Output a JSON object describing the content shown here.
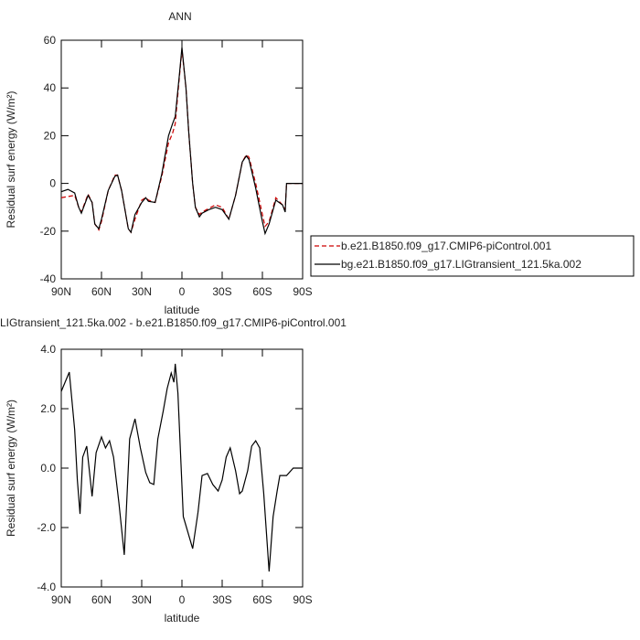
{
  "chart_data": [
    {
      "type": "line",
      "title": "ANN",
      "x_label": "latitude",
      "y_label": "Residual surf energy (W/m²)",
      "xlim": [
        90,
        -90
      ],
      "ylim": [
        -40,
        60
      ],
      "xticks": [
        {
          "value": 90,
          "label": "90N"
        },
        {
          "value": 60,
          "label": "60N"
        },
        {
          "value": 30,
          "label": "30N"
        },
        0,
        {
          "value": -30,
          "label": "30S"
        },
        {
          "value": -60,
          "label": "60S"
        },
        {
          "value": -90,
          "label": "90S"
        }
      ],
      "yticks": [
        -40,
        -20,
        0,
        20,
        40,
        60
      ],
      "legend": "outside-right",
      "x": [
        90,
        85,
        80,
        77,
        75,
        70,
        67,
        65,
        62,
        60,
        55,
        50,
        48,
        45,
        40,
        38,
        35,
        30,
        27,
        25,
        20,
        15,
        10,
        7,
        5,
        2,
        0,
        -3,
        -5,
        -8,
        -10,
        -13,
        -15,
        -20,
        -25,
        -30,
        -35,
        -40,
        -45,
        -48,
        -50,
        -55,
        -60,
        -62,
        -65,
        -70,
        -75,
        -77,
        -78,
        -80,
        -85,
        -90
      ],
      "series": [
        {
          "name": "b.e21.B1850.f09_g17.CMIP6-piControl.001",
          "color": "#cc0000",
          "line_style": "dashed",
          "values": [
            -6,
            -5.5,
            -5,
            -10,
            -12,
            -4.5,
            -8,
            -17,
            -19.5,
            -16,
            -3,
            3.5,
            3.5,
            -3,
            -19,
            -20.5,
            -15,
            -7,
            -6,
            -7,
            -8,
            3,
            17,
            21,
            25,
            44,
            56,
            40,
            22,
            0,
            -10,
            -13,
            -12,
            -10.5,
            -9,
            -10,
            -15,
            -5,
            9,
            12,
            11,
            0,
            -13,
            -18,
            -16,
            -6,
            -9,
            -11,
            0,
            0,
            0,
            0
          ]
        },
        {
          "name": "bg.e21.B1850.f09_g17.LIGtransient_121.5ka.002",
          "color": "#000000",
          "line_style": "solid",
          "values": [
            -3.5,
            -2.5,
            -4,
            -10,
            -12.5,
            -5,
            -8,
            -17,
            -19,
            -15,
            -3,
            3,
            3.5,
            -3,
            -19,
            -20.5,
            -13,
            -8,
            -6,
            -7.5,
            -8,
            4,
            20,
            25,
            28,
            45,
            57,
            40,
            22,
            0,
            -10,
            -14,
            -12.5,
            -11,
            -10,
            -11,
            -15,
            -5,
            9,
            11.5,
            10,
            -2,
            -16,
            -21,
            -17,
            -7,
            -9,
            -12,
            0,
            0,
            0,
            0
          ]
        }
      ]
    },
    {
      "type": "line",
      "title": "LIGtransient_121.5ka.002 - b.e21.B1850.f09_g17.CMIP6-piControl.001",
      "x_label": "latitude",
      "y_label": "Residual surf energy (W/m²)",
      "xlim": [
        90,
        -90
      ],
      "ylim": [
        -4,
        4
      ],
      "xticks": [
        {
          "value": 90,
          "label": "90N"
        },
        {
          "value": 60,
          "label": "60N"
        },
        {
          "value": 30,
          "label": "30N"
        },
        0,
        {
          "value": -30,
          "label": "30S"
        },
        {
          "value": -60,
          "label": "60S"
        },
        {
          "value": -90,
          "label": "90S"
        }
      ],
      "yticks": [
        {
          "value": -4,
          "label": "-4.0"
        },
        {
          "value": -2,
          "label": "-2.0"
        },
        {
          "value": 0,
          "label": "0.0"
        },
        {
          "value": 2,
          "label": "2.0"
        },
        {
          "value": 4,
          "label": "4.0"
        }
      ],
      "x": [
        90,
        84,
        80,
        78,
        76,
        74,
        71,
        67,
        64,
        60,
        57,
        54,
        51,
        47,
        43,
        39,
        35,
        31,
        27,
        24,
        21,
        18,
        14,
        11,
        8,
        6,
        5,
        3,
        -1,
        -4,
        -8,
        -12,
        -15,
        -19,
        -23,
        -27,
        -30,
        -33,
        -36,
        -40,
        -43,
        -45,
        -49,
        -52,
        -55,
        -58,
        -61,
        -65,
        -68,
        -71,
        -73,
        -78,
        -83,
        -90
      ],
      "series": [
        {
          "color": "#000000",
          "line_style": "solid",
          "values": [
            2.58,
            3.23,
            1.29,
            -0.4,
            -1.54,
            0.37,
            0.74,
            -0.95,
            0.52,
            1.05,
            0.68,
            0.92,
            0.37,
            -1.17,
            -2.92,
            0.98,
            1.66,
            0.68,
            -0.15,
            -0.49,
            -0.55,
            0.98,
            1.91,
            2.68,
            3.2,
            2.89,
            3.51,
            2.52,
            -1.63,
            -2.09,
            -2.71,
            -1.48,
            -0.25,
            -0.18,
            -0.55,
            -0.77,
            -0.4,
            0.37,
            0.68,
            -0.09,
            -0.86,
            -0.77,
            -0.09,
            0.74,
            0.92,
            0.68,
            -0.86,
            -3.48,
            -1.63,
            -0.77,
            -0.25,
            -0.25,
            0,
            0
          ]
        }
      ]
    }
  ]
}
